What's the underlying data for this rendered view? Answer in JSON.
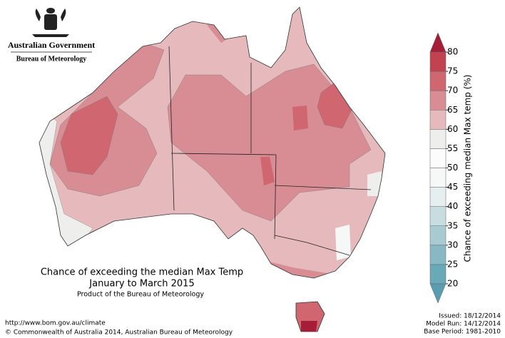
{
  "header": {
    "government": "Australian Government",
    "agency": "Bureau of Meteorology"
  },
  "map": {
    "title": "Chance of exceeding the median Max Temp",
    "subtitle": "January to March 2015",
    "product": "Product of the Bureau of Meteorology"
  },
  "legend": {
    "label": "Chance of exceeding median Max temp (%)",
    "ticks": [
      20,
      25,
      30,
      35,
      40,
      45,
      50,
      55,
      60,
      65,
      70,
      75,
      80
    ],
    "colors": [
      "#6aa9b8",
      "#87b8c3",
      "#a8cbd1",
      "#c7dde0",
      "#e6eef0",
      "#f6f8f8",
      "#fcfcfc",
      "#eeeeec",
      "#e6b9bc",
      "#d88c93",
      "#cf6670",
      "#c2434f"
    ],
    "under_color": "#5a9db0",
    "over_color": "#a51d37"
  },
  "footer": {
    "url": "http://www.bom.gov.au/climate",
    "copyright": "© Commonwealth of Australia 2014, Australian Bureau of Meteorology",
    "issued": "Issued: 18/12/2014",
    "model_run": "Model Run: 14/12/2014",
    "base_period": "Base Period: 1981-2010"
  }
}
